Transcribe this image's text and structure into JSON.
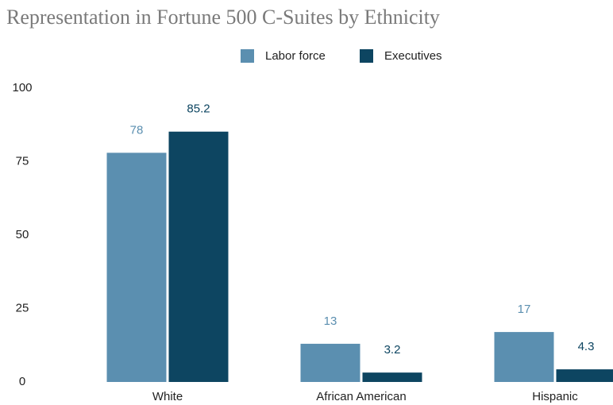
{
  "chart_data": {
    "type": "bar",
    "title": "Representation in Fortune 500 C-Suites by Ethnicity",
    "categories": [
      "White",
      "African American",
      "Hispanic"
    ],
    "series": [
      {
        "name": "Labor force",
        "color": "#5b8fb0",
        "values": [
          78,
          13,
          17
        ]
      },
      {
        "name": "Executives",
        "color": "#0d4561",
        "values": [
          85.2,
          3.2,
          4.3
        ]
      }
    ],
    "ylim": [
      0,
      100
    ],
    "yticks": [
      0,
      25,
      50,
      75,
      100
    ],
    "grid": false,
    "legend": "top"
  }
}
